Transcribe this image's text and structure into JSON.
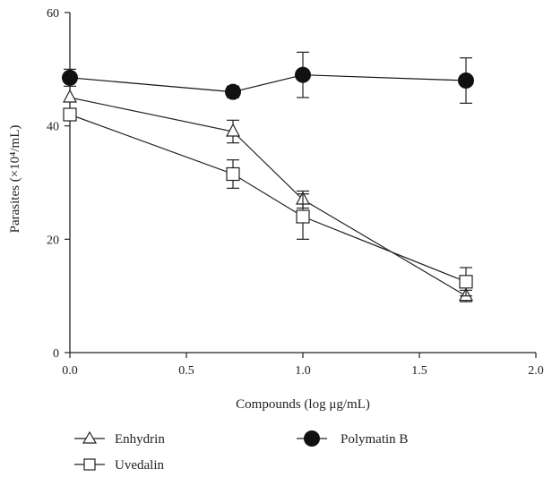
{
  "chart_data": {
    "type": "line",
    "xlabel": "Compounds (log μg/mL)",
    "ylabel": "Parasites (×10⁴/mL)",
    "xlim": [
      0,
      2.0
    ],
    "ylim": [
      0,
      60
    ],
    "xticks": [
      "0.0",
      "0.5",
      "1.0",
      "1.5",
      "2.0"
    ],
    "yticks": [
      "0",
      "20",
      "40",
      "60"
    ],
    "grid": false,
    "legend_position": "bottom",
    "series": [
      {
        "name": "Enhydrin",
        "marker": "open-triangle",
        "color": "#222222",
        "x": [
          0.0,
          0.7,
          1.0,
          1.7
        ],
        "y": [
          45,
          39,
          27,
          10
        ],
        "err": [
          0,
          2,
          1.5,
          1
        ]
      },
      {
        "name": "Uvedalin",
        "marker": "open-square",
        "color": "#222222",
        "x": [
          0.0,
          0.7,
          1.0,
          1.7
        ],
        "y": [
          42,
          31.5,
          24,
          12.5
        ],
        "err": [
          1,
          2.5,
          4,
          2.5
        ]
      },
      {
        "name": "Polymatin B",
        "marker": "filled-circle",
        "color": "#111111",
        "x": [
          0.0,
          0.7,
          1.0,
          1.7
        ],
        "y": [
          48.5,
          46,
          49,
          48
        ],
        "err": [
          1.5,
          1,
          4,
          4
        ]
      }
    ]
  }
}
